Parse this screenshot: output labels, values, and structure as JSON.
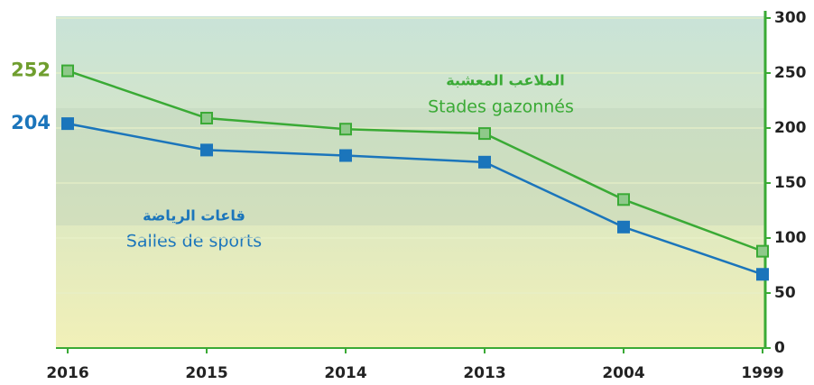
{
  "chart_data": {
    "type": "line",
    "categories": [
      "2016",
      "2015",
      "2014",
      "2013",
      "2004",
      "1999"
    ],
    "series": [
      {
        "name": "Stades gazonnés",
        "name_ar": "الملاعب المعشبة",
        "color": "#3aaa35",
        "values": [
          252,
          209,
          199,
          195,
          135,
          88
        ]
      },
      {
        "name": "Salles de sports",
        "name_ar": "قاعات الرياضة",
        "color": "#1b75bb",
        "values": [
          204,
          180,
          175,
          169,
          110,
          67
        ]
      }
    ],
    "ylim": [
      0,
      300
    ],
    "yticks": [
      0,
      50,
      100,
      150,
      200,
      250,
      300
    ],
    "grid": true,
    "axis_color": "#3aaa35"
  }
}
